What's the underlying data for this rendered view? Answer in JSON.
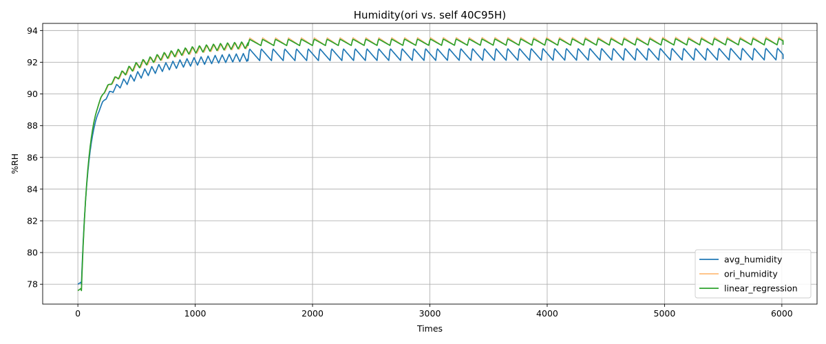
{
  "chart_data": {
    "type": "line",
    "title": "Humidity(ori vs. self 40C95H)",
    "xlabel": "Times",
    "ylabel": "%RH",
    "xlim": [
      -300,
      6300
    ],
    "ylim": [
      76.75,
      94.45
    ],
    "xticks": [
      0,
      1000,
      2000,
      3000,
      4000,
      5000,
      6000
    ],
    "yticks": [
      78,
      80,
      82,
      84,
      86,
      88,
      90,
      92,
      94
    ],
    "grid": true,
    "legend_position": "lower-right",
    "series": [
      {
        "name": "avg_humidity",
        "color": "#1f77b4",
        "curve": {
          "start": 78.0,
          "asymptote": 92.45,
          "tau": 420,
          "osc_amp": 0.5,
          "osc_period": 60,
          "fast_tau": 60,
          "fast_asym": 87.0
        },
        "late_sawtooth": {
          "start_x": 1450,
          "end_x": 6010,
          "period": 100,
          "high": 92.85,
          "low": 92.1,
          "final": 92.2
        }
      },
      {
        "name": "ori_humidity",
        "color": "#ffbb78",
        "curve": {
          "start": 77.6,
          "asymptote": 93.2,
          "tau": 430,
          "osc_amp": 0.45,
          "osc_period": 60
        },
        "late_sawtooth": {
          "start_x": 1450,
          "end_x": 6010,
          "period": 110,
          "high": 93.55,
          "low": 93.05,
          "final": 93.3
        }
      },
      {
        "name": "linear_regression",
        "color": "#2ca02c",
        "curve": {
          "start": 77.6,
          "asymptote": 93.25,
          "tau": 430,
          "osc_amp": 0.45,
          "osc_period": 60
        },
        "late_sawtooth": {
          "start_x": 1450,
          "end_x": 6010,
          "period": 110,
          "high": 93.45,
          "low": 93.05,
          "final": 93.1
        }
      }
    ]
  }
}
